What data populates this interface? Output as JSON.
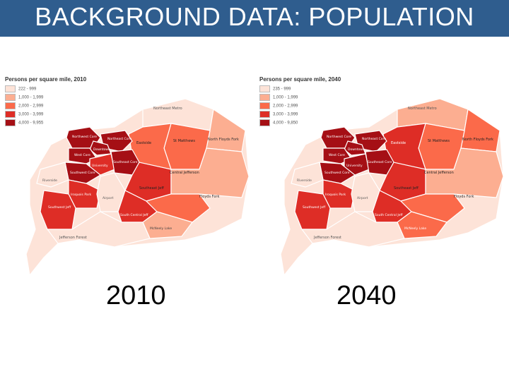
{
  "header": {
    "title": "BACKGROUND DATA: POPULATION"
  },
  "colors": {
    "header_bg": "#2f5d8e",
    "c1": "#fde3d8",
    "c2": "#fcae91",
    "c3": "#fb6a4a",
    "c4": "#de2d26",
    "c5": "#a50f15"
  },
  "maps": [
    {
      "legend_title": "Persons per square mile, 2010",
      "legend": [
        "222 - 999",
        "1,000 - 1,999",
        "2,000 - 2,999",
        "3,000 - 3,999",
        "4,000 - 9,955"
      ],
      "year": "2010",
      "areas": {
        "northeast_metro": "Northeast Metro",
        "floyds_fork_n": "North Floyds Fork",
        "floyds_fork_s": "Floyds Fork",
        "st_matthews": "St Matthews",
        "eastside": "Eastside",
        "northwest": "Northwest Core",
        "north_east_core": "Northeast Core",
        "downtown": "Downtown",
        "west_core": "West Core",
        "university": "University",
        "southeast_core": "Southeast Core",
        "southwest_core": "Southwest Core",
        "central_jefferson": "Central Jefferson",
        "riverside": "Riverside",
        "iroquois": "Iroquois Park",
        "airport": "Airport",
        "south_central": "South Central Jeff",
        "southwest_jeff": "Southwest Jeff",
        "jeff_forest": "Jefferson Forest",
        "mc_neely": "McNeely Lake",
        "southeast_jeff": "Southeast Jeff"
      }
    },
    {
      "legend_title": "Persons per square mile, 2040",
      "legend": [
        "235 - 999",
        "1,000 - 1,999",
        "2,000 - 2,999",
        "3,000 - 3,999",
        "4,000 - 9,850"
      ],
      "year": "2040",
      "areas": {
        "northeast_metro": "Northeast Metro",
        "floyds_fork_n": "North Floyds Fork",
        "floyds_fork_s": "Floyds Fork",
        "st_matthews": "St Matthews",
        "eastside": "Eastside",
        "northwest": "Northwest Core",
        "north_east_core": "Northeast Core",
        "downtown": "Downtown",
        "west_core": "West Core",
        "university": "University",
        "southeast_core": "Southeast Core",
        "southwest_core": "Southwest Core",
        "central_jefferson": "Central Jefferson",
        "riverside": "Riverside",
        "iroquois": "Iroquois Park",
        "airport": "Airport",
        "south_central": "South Central Jeff",
        "southwest_jeff": "Southwest Jeff",
        "jeff_forest": "Jefferson Forest",
        "mc_neely": "McNeely Lake",
        "southeast_jeff": "Southeast Jeff"
      }
    }
  ]
}
